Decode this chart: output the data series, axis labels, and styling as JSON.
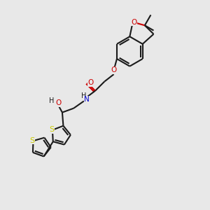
{
  "bg_color": "#e8e8e8",
  "bond_color": "#1a1a1a",
  "o_color": "#cc0000",
  "n_color": "#0000cc",
  "s_color": "#cccc00",
  "line_width": 1.5,
  "fig_size": [
    3.0,
    3.0
  ],
  "dpi": 100,
  "xlim": [
    0,
    10
  ],
  "ylim": [
    0,
    10
  ]
}
